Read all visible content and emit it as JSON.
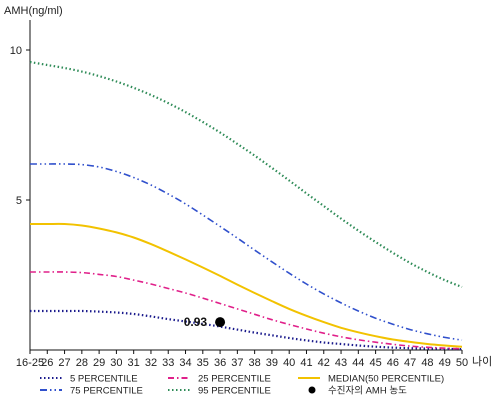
{
  "chart_data": {
    "type": "line",
    "ylabel": "AMH(ng/ml)",
    "xlabel": "나이",
    "ylim": [
      0,
      11
    ],
    "yticks": [
      5,
      10
    ],
    "categories": [
      "16-25",
      "26",
      "27",
      "28",
      "29",
      "30",
      "31",
      "32",
      "33",
      "34",
      "35",
      "36",
      "37",
      "38",
      "39",
      "40",
      "41",
      "42",
      "43",
      "44",
      "45",
      "46",
      "47",
      "48",
      "49",
      "50"
    ],
    "grid": false,
    "legend_position": "bottom",
    "series": [
      {
        "name": "5 PERCENTILE",
        "color": "#1a1a8c",
        "dash": "dot",
        "values": [
          1.3,
          1.3,
          1.3,
          1.3,
          1.28,
          1.25,
          1.2,
          1.12,
          1.03,
          0.95,
          0.87,
          0.78,
          0.68,
          0.58,
          0.49,
          0.4,
          0.32,
          0.25,
          0.2,
          0.15,
          0.11,
          0.08,
          0.06,
          0.05,
          0.04,
          0.03
        ]
      },
      {
        "name": "25 PERCENTILE",
        "color": "#e0208a",
        "dash": "dashdot",
        "values": [
          2.6,
          2.6,
          2.6,
          2.58,
          2.52,
          2.45,
          2.33,
          2.2,
          2.05,
          1.9,
          1.73,
          1.55,
          1.37,
          1.19,
          1.01,
          0.85,
          0.7,
          0.56,
          0.44,
          0.34,
          0.26,
          0.19,
          0.13,
          0.09,
          0.06,
          0.04
        ]
      },
      {
        "name": "MEDIAN(50 PERCENTILE)",
        "color": "#f2c200",
        "dash": "solid",
        "values": [
          4.2,
          4.2,
          4.2,
          4.15,
          4.05,
          3.92,
          3.75,
          3.53,
          3.28,
          3.02,
          2.75,
          2.47,
          2.18,
          1.9,
          1.63,
          1.37,
          1.14,
          0.93,
          0.74,
          0.59,
          0.46,
          0.35,
          0.27,
          0.2,
          0.15,
          0.11
        ]
      },
      {
        "name": "75 PERCENTILE",
        "color": "#3050cc",
        "dash": "dashdotdot",
        "values": [
          6.2,
          6.2,
          6.2,
          6.18,
          6.1,
          5.95,
          5.75,
          5.5,
          5.2,
          4.87,
          4.5,
          4.12,
          3.73,
          3.33,
          2.94,
          2.56,
          2.2,
          1.87,
          1.57,
          1.3,
          1.06,
          0.86,
          0.68,
          0.54,
          0.42,
          0.33
        ]
      },
      {
        "name": "95 PERCENTILE",
        "color": "#2e8b57",
        "dash": "dot",
        "values": [
          9.6,
          9.5,
          9.4,
          9.28,
          9.13,
          8.95,
          8.74,
          8.5,
          8.23,
          7.93,
          7.6,
          7.25,
          6.87,
          6.48,
          6.07,
          5.65,
          5.22,
          4.8,
          4.38,
          3.98,
          3.6,
          3.24,
          2.9,
          2.6,
          2.33,
          2.1
        ]
      }
    ],
    "patient_point": {
      "name": "수진자의 AMH 농도",
      "x": "36",
      "y": 0.93,
      "label": "0.93"
    }
  }
}
